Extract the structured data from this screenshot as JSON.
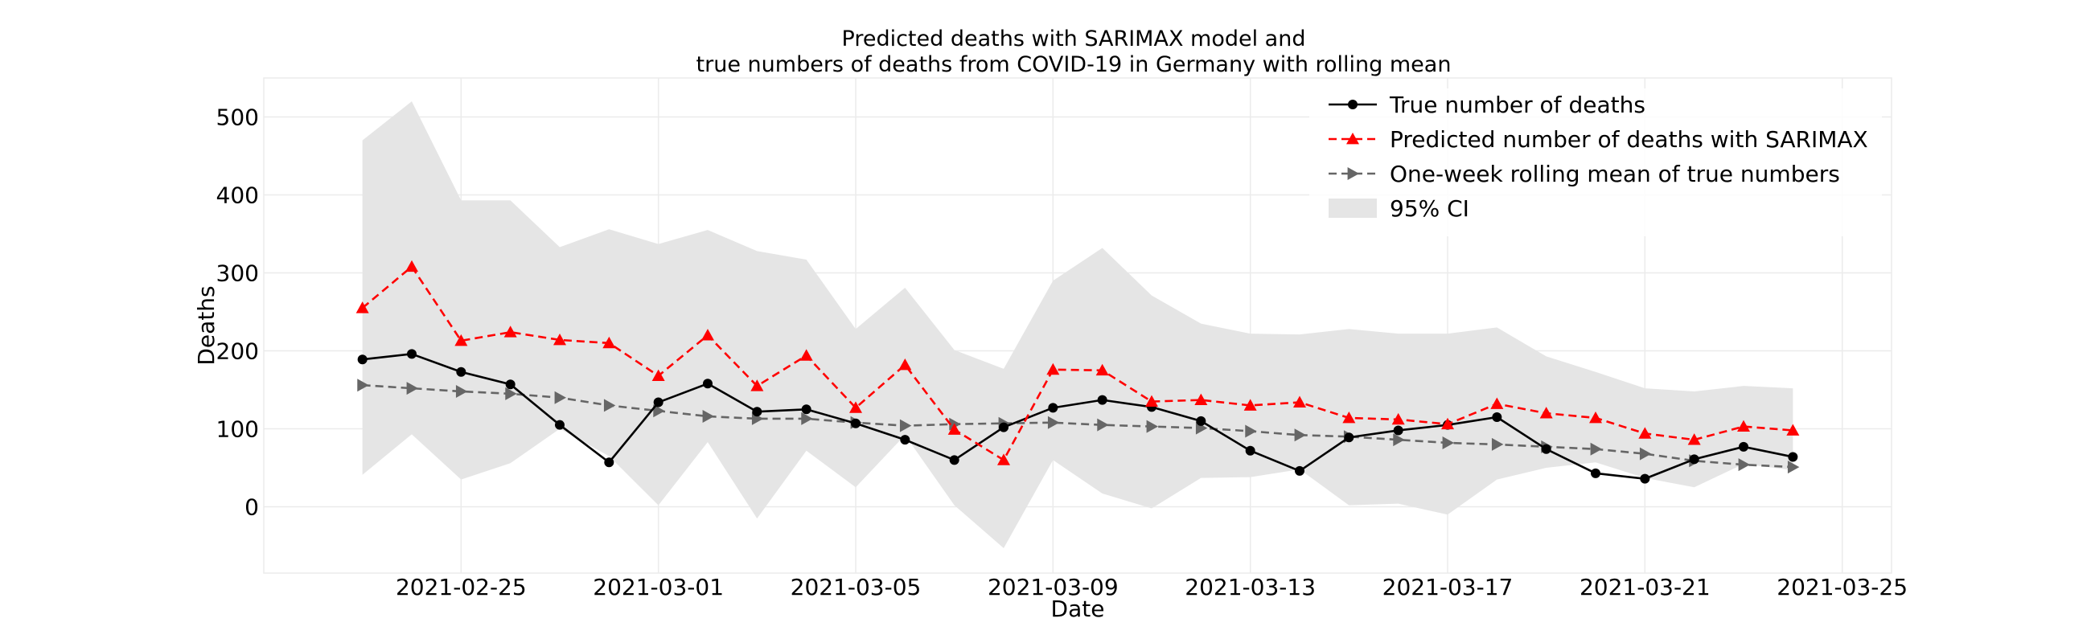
{
  "chart_data": {
    "type": "line",
    "title_lines": [
      "Predicted deaths with SARIMAX model and",
      "true numbers of deaths from COVID-19 in Germany with rolling mean"
    ],
    "xlabel": "Date",
    "ylabel": "Deaths",
    "x_ticks": [
      "2021-02-25",
      "2021-03-01",
      "2021-03-05",
      "2021-03-09",
      "2021-03-13",
      "2021-03-17",
      "2021-03-21",
      "2021-03-25"
    ],
    "y_ticks": [
      "0",
      "100",
      "200",
      "300",
      "400",
      "500"
    ],
    "xlim": [
      "2021-02-21",
      "2021-03-26"
    ],
    "ylim": [
      -85,
      550
    ],
    "grid": true,
    "legend_position": "top-right",
    "x": [
      "2021-02-23",
      "2021-02-24",
      "2021-02-25",
      "2021-02-26",
      "2021-02-27",
      "2021-02-28",
      "2021-03-01",
      "2021-03-02",
      "2021-03-03",
      "2021-03-04",
      "2021-03-05",
      "2021-03-06",
      "2021-03-07",
      "2021-03-08",
      "2021-03-09",
      "2021-03-10",
      "2021-03-11",
      "2021-03-12",
      "2021-03-13",
      "2021-03-14",
      "2021-03-15",
      "2021-03-16",
      "2021-03-17",
      "2021-03-18",
      "2021-03-19",
      "2021-03-20",
      "2021-03-21",
      "2021-03-22",
      "2021-03-23",
      "2021-03-24"
    ],
    "series": [
      {
        "name": "True number of deaths",
        "color": "#000000",
        "style": "solid",
        "marker": "circle",
        "values": [
          189,
          196,
          173,
          157,
          105,
          57,
          134,
          158,
          122,
          125,
          107,
          86,
          60,
          102,
          127,
          137,
          128,
          110,
          72,
          46,
          89,
          98,
          105,
          115,
          74,
          43,
          36,
          61,
          77,
          64
        ]
      },
      {
        "name": "Predicted number of deaths with SARIMAX",
        "color": "#ff0000",
        "style": "dashed",
        "marker": "triangle-up",
        "values": [
          255,
          308,
          213,
          224,
          214,
          210,
          168,
          220,
          155,
          194,
          127,
          182,
          99,
          60,
          176,
          175,
          135,
          137,
          130,
          134,
          114,
          112,
          106,
          132,
          120,
          114,
          94,
          86,
          103,
          98
        ]
      },
      {
        "name": "One-week rolling mean of true numbers",
        "color": "#666666",
        "style": "dashed",
        "marker": "triangle-right",
        "values": [
          156,
          152,
          148,
          145,
          140,
          130,
          123,
          116,
          113,
          113,
          108,
          104,
          106,
          107,
          108,
          105,
          103,
          101,
          97,
          92,
          90,
          86,
          82,
          80,
          77,
          74,
          68,
          59,
          54,
          51
        ]
      }
    ],
    "confidence_interval": {
      "name": "95% CI",
      "color": "#e5e5e5",
      "upper": [
        470,
        520,
        393,
        393,
        333,
        356,
        337,
        355,
        328,
        317,
        228,
        281,
        201,
        177,
        290,
        332,
        271,
        235,
        222,
        221,
        228,
        222,
        222,
        230,
        193,
        173,
        152,
        148,
        155,
        152
      ],
      "lower": [
        41,
        93,
        35,
        56,
        100,
        65,
        2,
        83,
        -15,
        72,
        25,
        92,
        2,
        -53,
        60,
        17,
        -2,
        37,
        38,
        48,
        2,
        4,
        -10,
        35,
        50,
        57,
        37,
        25,
        55,
        47
      ]
    }
  }
}
